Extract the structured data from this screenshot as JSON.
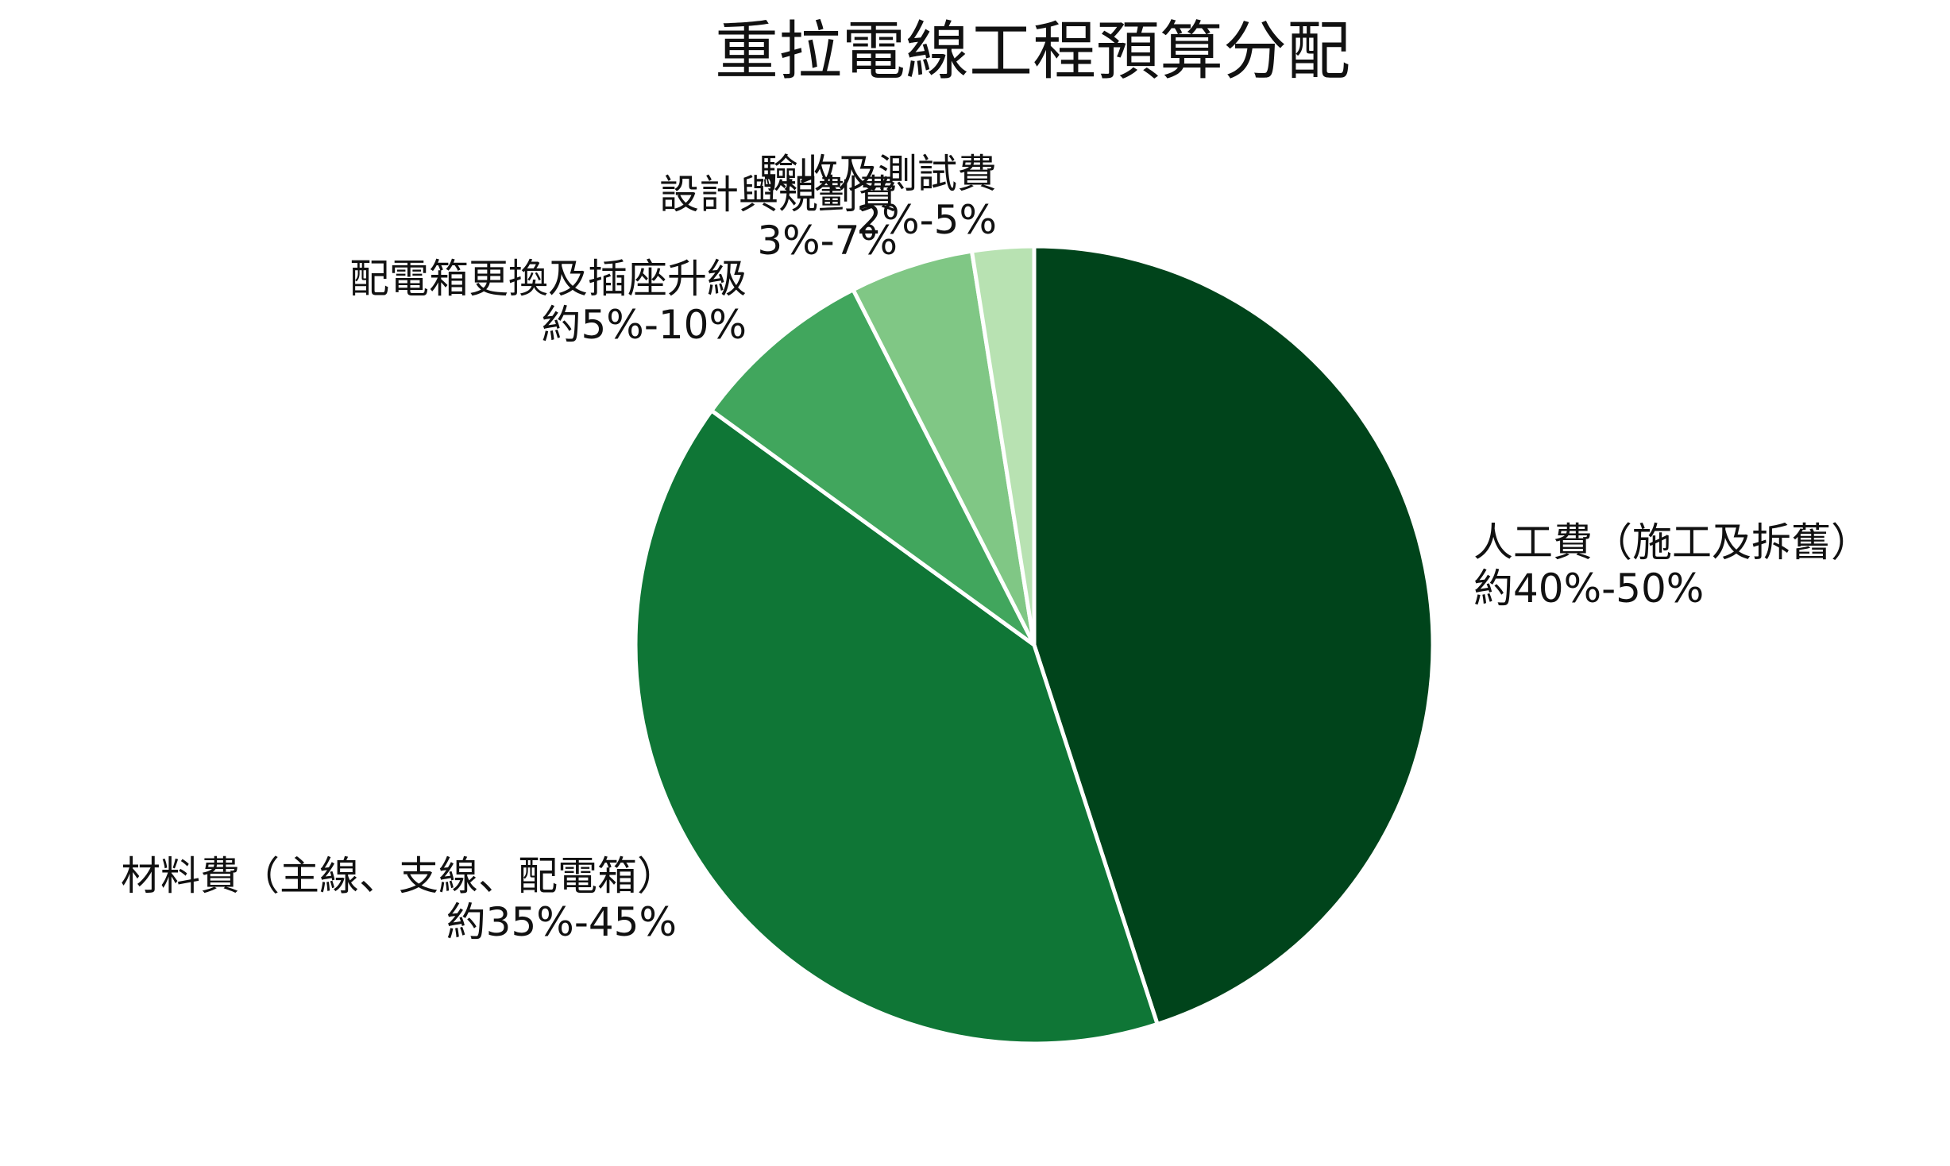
{
  "chart_data": {
    "type": "pie",
    "title": "重拉電線工程預算分配",
    "start_angle_deg": 90,
    "direction": "clockwise",
    "slices": [
      {
        "label": "人工費（施工及拆舊）",
        "range_text": "約40%-50%",
        "value": 45,
        "color": "#00441b"
      },
      {
        "label": "材料費（主線、支線、配電箱）",
        "range_text": "約35%-45%",
        "value": 40,
        "color": "#0f7636"
      },
      {
        "label": "配電箱更換及插座升級",
        "range_text": "約5%-10%",
        "value": 7.5,
        "color": "#41a65d"
      },
      {
        "label": "設計與規劃費",
        "range_text": "3%-7%",
        "value": 5,
        "color": "#80c785"
      },
      {
        "label": "驗收及測試費",
        "range_text": "2%-5%",
        "value": 2.5,
        "color": "#b8e2b2"
      }
    ]
  }
}
